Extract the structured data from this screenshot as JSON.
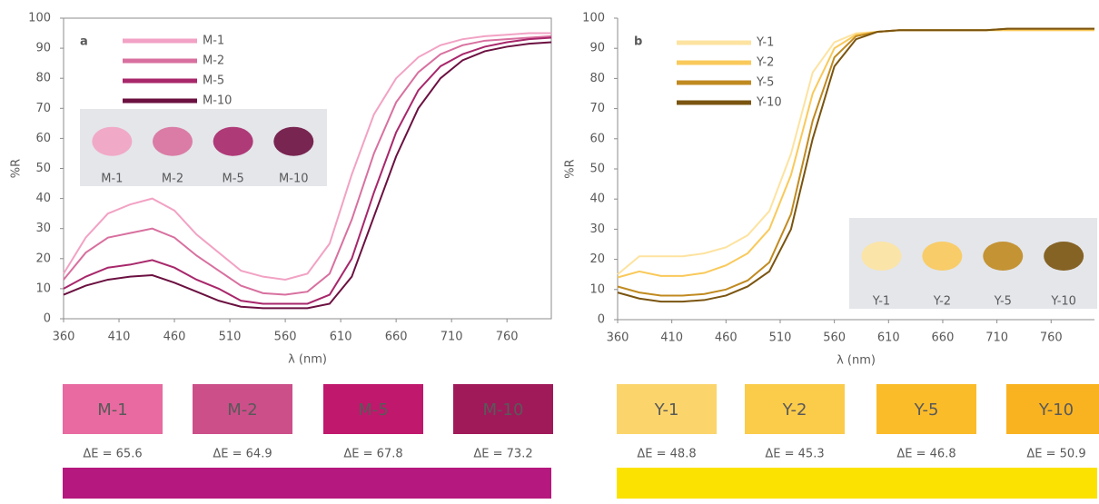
{
  "chart_data": [
    {
      "type": "line",
      "panel_label": "a",
      "x_label": "λ (nm)",
      "y_label": "%R",
      "x": [
        360,
        380,
        400,
        420,
        440,
        460,
        480,
        500,
        520,
        540,
        560,
        580,
        600,
        620,
        640,
        660,
        680,
        700,
        720,
        740,
        760,
        780,
        800
      ],
      "xlim": [
        360,
        800
      ],
      "xticks": [
        360,
        410,
        460,
        510,
        560,
        610,
        660,
        710,
        760
      ],
      "ylim": [
        0,
        100
      ],
      "yticks": [
        0,
        10,
        20,
        30,
        40,
        50,
        60,
        70,
        80,
        90,
        100
      ],
      "frame": true,
      "series": [
        {
          "name": "M-1",
          "color": "#f2a2c4",
          "values": [
            15,
            27,
            35,
            38,
            40,
            36,
            28,
            22,
            16,
            14,
            13,
            15,
            25,
            48,
            68,
            80,
            87,
            91,
            93,
            94,
            94.5,
            95,
            95
          ]
        },
        {
          "name": "M-2",
          "color": "#d8709f",
          "values": [
            13,
            22,
            27,
            28.5,
            30,
            27,
            21,
            16,
            11,
            8.5,
            8,
            9,
            15,
            33,
            55,
            72,
            82,
            88,
            91,
            92.5,
            93,
            93.5,
            94
          ]
        },
        {
          "name": "M-5",
          "color": "#a8276b",
          "values": [
            10,
            14,
            17,
            18,
            19.5,
            17,
            13,
            10,
            6,
            5,
            5,
            5,
            8,
            20,
            42,
            62,
            76,
            84,
            88,
            90.5,
            92,
            93,
            93.5
          ]
        },
        {
          "name": "M-10",
          "color": "#6b1040",
          "values": [
            8,
            11,
            13,
            14,
            14.5,
            12,
            9,
            6,
            4,
            3.5,
            3.5,
            3.5,
            5,
            14,
            34,
            54,
            70,
            80,
            86,
            89,
            90.5,
            91.5,
            92
          ]
        }
      ],
      "inset_labels": [
        "M-1",
        "M-2",
        "M-5",
        "M-10"
      ]
    },
    {
      "type": "line",
      "panel_label": "b",
      "x_label": "λ (nm)",
      "y_label": "%R",
      "x": [
        360,
        380,
        400,
        420,
        440,
        460,
        480,
        500,
        520,
        540,
        560,
        580,
        600,
        620,
        640,
        660,
        680,
        700,
        720,
        740,
        760,
        780,
        800
      ],
      "xlim": [
        360,
        800
      ],
      "xticks": [
        360,
        410,
        460,
        510,
        560,
        610,
        660,
        710,
        760
      ],
      "ylim": [
        0,
        100
      ],
      "yticks": [
        0,
        10,
        20,
        30,
        40,
        50,
        60,
        70,
        80,
        90,
        100
      ],
      "frame": false,
      "series": [
        {
          "name": "Y-1",
          "color": "#fde3a0",
          "values": [
            15,
            21,
            21,
            21,
            22,
            24,
            28,
            36,
            55,
            82,
            92,
            95,
            95.5,
            96,
            96,
            96,
            96,
            96,
            96,
            96,
            96,
            96,
            96
          ]
        },
        {
          "name": "Y-2",
          "color": "#f9c95a",
          "values": [
            14,
            16,
            14.5,
            14.5,
            15.5,
            18,
            22,
            30,
            48,
            75,
            90,
            94.5,
            95.5,
            96,
            96,
            96,
            96,
            96,
            96,
            96,
            96,
            96,
            96
          ]
        },
        {
          "name": "Y-5",
          "color": "#c08a20",
          "values": [
            11,
            9,
            8,
            8,
            8.5,
            10,
            13,
            19,
            35,
            66,
            87,
            94,
            95.5,
            96,
            96,
            96,
            96,
            96,
            96.5,
            96.5,
            96.5,
            96.5,
            96.5
          ]
        },
        {
          "name": "Y-10",
          "color": "#7a5410",
          "values": [
            9,
            7,
            6,
            6,
            6.5,
            8,
            11,
            16,
            30,
            60,
            84,
            93,
            95.5,
            96,
            96,
            96,
            96,
            96,
            96.5,
            96.5,
            96.5,
            96.5,
            96.5
          ]
        }
      ],
      "inset_labels": [
        "Y-1",
        "Y-2",
        "Y-5",
        "Y-10"
      ]
    }
  ],
  "swatch_rows": [
    {
      "reference_color": "#b5187e",
      "swatches": [
        {
          "label": "M-1",
          "color": "#e86aa0",
          "delta_e": "ΔE = 65.6"
        },
        {
          "label": "M-2",
          "color": "#cc4f8a",
          "delta_e": "ΔE = 64.9"
        },
        {
          "label": "M-5",
          "color": "#c0186d",
          "delta_e": "ΔE = 67.8"
        },
        {
          "label": "M-10",
          "color": "#a01a5a",
          "delta_e": "ΔE = 73.2"
        }
      ]
    },
    {
      "reference_color": "#fce200",
      "swatches": [
        {
          "label": "Y-1",
          "color": "#fbd56c",
          "delta_e": "ΔE = 48.8"
        },
        {
          "label": "Y-2",
          "color": "#fbcb4a",
          "delta_e": "ΔE = 45.3"
        },
        {
          "label": "Y-5",
          "color": "#fbbc2a",
          "delta_e": "ΔE = 46.8"
        },
        {
          "label": "Y-10",
          "color": "#f9b321",
          "delta_e": "ΔE = 50.9"
        }
      ]
    }
  ]
}
